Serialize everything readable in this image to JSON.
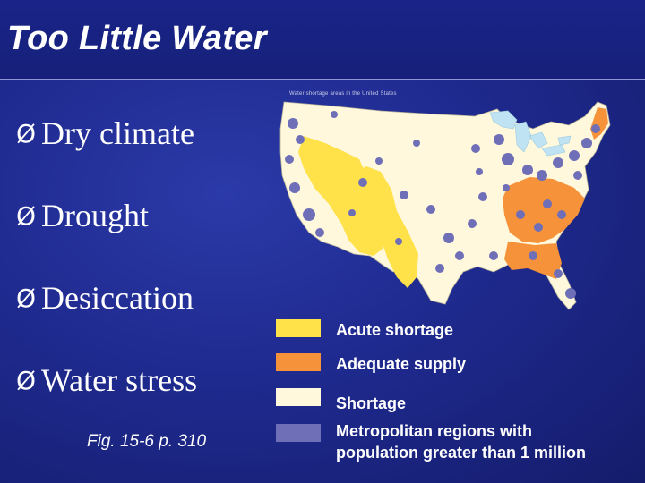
{
  "slide": {
    "title": "Too Little Water",
    "bullets": [
      {
        "label": "Dry climate"
      },
      {
        "label": "Drought"
      },
      {
        "label": "Desiccation"
      },
      {
        "label": "Water stress"
      }
    ],
    "caption": "Fig. 15-6 p. 310",
    "bullet_symbol": "Ø"
  },
  "map": {
    "header": "Water shortage areas in the United States"
  },
  "legend": {
    "items": [
      {
        "label": "Acute shortage",
        "color": "#ffe14a"
      },
      {
        "label": "Adequate supply",
        "color": "#f5923a"
      },
      {
        "label": "Shortage",
        "color": "#fff8dc"
      },
      {
        "label": "Metropolitan regions with",
        "label2": "population greater than 1 million",
        "color": "#6f6fb8"
      }
    ]
  },
  "colors": {
    "background": "#1f2a8f",
    "acute": "#ffe14a",
    "adequate": "#f5923a",
    "shortage": "#fff8dc",
    "metro": "#6f6fb8",
    "lakes": "#bfe3f2"
  }
}
